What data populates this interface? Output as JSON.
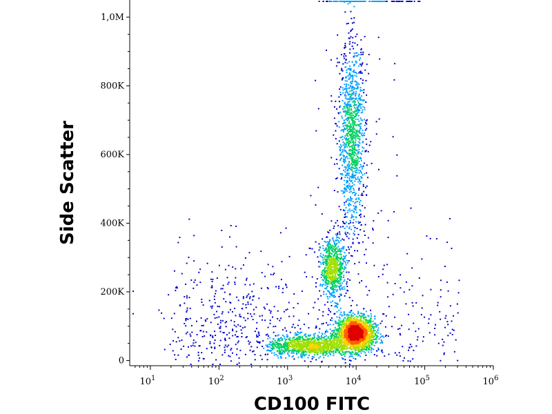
{
  "chart_data": {
    "type": "scatter",
    "subtype": "flow-cytometry density dot plot",
    "title": "",
    "xlabel": "CD100 FITC",
    "ylabel": "Side Scatter",
    "x_scale": "log",
    "xlim": [
      5,
      1000000
    ],
    "ylim": [
      -15000,
      1050000
    ],
    "x_ticks": [
      {
        "value": 10,
        "base": "10",
        "exp": "1"
      },
      {
        "value": 100,
        "base": "10",
        "exp": "2"
      },
      {
        "value": 1000,
        "base": "10",
        "exp": "3"
      },
      {
        "value": 10000,
        "base": "10",
        "exp": "4"
      },
      {
        "value": 100000,
        "base": "10",
        "exp": "5"
      },
      {
        "value": 1000000,
        "base": "10",
        "exp": "6"
      }
    ],
    "y_ticks": [
      {
        "value": 0,
        "label": "0"
      },
      {
        "value": 200000,
        "label": "200K"
      },
      {
        "value": 400000,
        "label": "400K"
      },
      {
        "value": 600000,
        "label": "600K"
      },
      {
        "value": 800000,
        "label": "800K"
      },
      {
        "value": 1000000,
        "label": "1,0M"
      }
    ],
    "grid": false,
    "legend": "none",
    "populations": [
      {
        "x_center": 9500,
        "y_center": 80000,
        "x_spread_decades": 0.14,
        "y_spread": 25000,
        "relative_density": 1.0,
        "peak": "red"
      },
      {
        "x_center": 2000,
        "y_center": 45000,
        "x_spread_decades": 0.3,
        "y_spread": 15000,
        "relative_density": 0.5,
        "peak": "green"
      },
      {
        "x_center": 4500,
        "y_center": 270000,
        "x_spread_decades": 0.09,
        "y_spread": 45000,
        "relative_density": 0.35,
        "peak": "yellow-green"
      },
      {
        "x_center": 8500,
        "y_center": 650000,
        "x_spread_decades": 0.1,
        "y_spread": 140000,
        "relative_density": 0.55,
        "peak": "yellow-green"
      },
      {
        "x_center": 150,
        "y_center": 120000,
        "x_spread_decades": 0.5,
        "y_spread": 70000,
        "relative_density": 0.08,
        "peak": "blue"
      }
    ],
    "colors": {
      "density_scale": [
        "#0000c8",
        "#00a0ff",
        "#00d060",
        "#a0e000",
        "#ffd000",
        "#ff6000",
        "#e00000"
      ]
    }
  }
}
